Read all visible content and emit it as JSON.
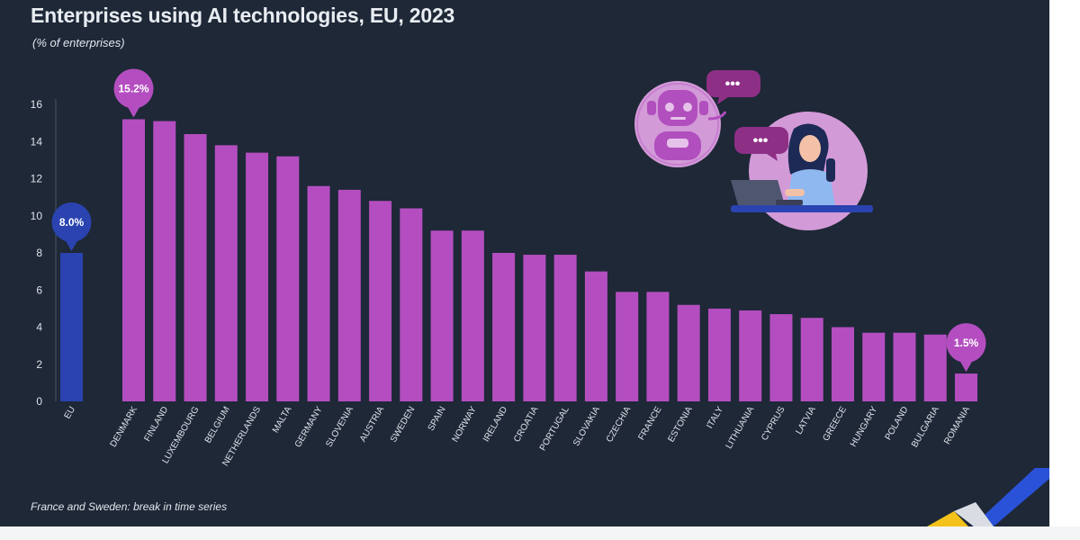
{
  "title": "Enterprises using AI technologies, EU, 2023",
  "subtitle": "(% of enterprises)",
  "note": "France and Sweden: break in time series",
  "colors": {
    "background": "#1e2837",
    "bar": "#b44ec0",
    "eu_bar": "#2a43b0",
    "callout_purple": "#b44ec0",
    "callout_blue": "#2a43b0",
    "axis_text": "#dfe3ea"
  },
  "chart_data": {
    "type": "bar",
    "title": "Enterprises using AI technologies, EU, 2023",
    "subtitle": "(% of enterprises)",
    "xlabel": "",
    "ylabel": "",
    "ylim": [
      0,
      16
    ],
    "yticks": [
      0,
      2,
      4,
      6,
      8,
      10,
      12,
      14,
      16
    ],
    "grid": false,
    "categories": [
      "EU",
      "DENMARK",
      "FINLAND",
      "LUXEMBOURG",
      "BELGIUM",
      "NETHERLANDS",
      "MALTA",
      "GERMANY",
      "SLOVENIA",
      "AUSTRIA",
      "SWEDEN",
      "SPAIN",
      "NORWAY",
      "IRELAND",
      "CROATIA",
      "PORTUGAL",
      "SLOVAKIA",
      "CZECHIA",
      "FRANCE",
      "ESTONIA",
      "ITALY",
      "LITHUANIA",
      "CYPRUS",
      "LATVIA",
      "GREECE",
      "HUNGARY",
      "POLAND",
      "BULGARIA",
      "ROMANIA"
    ],
    "values": [
      8.0,
      15.2,
      15.1,
      14.4,
      13.8,
      13.4,
      13.2,
      11.6,
      11.4,
      10.8,
      10.4,
      9.2,
      9.2,
      8.0,
      7.9,
      7.9,
      7.0,
      5.9,
      5.9,
      5.2,
      5.0,
      4.9,
      4.7,
      4.5,
      4.0,
      3.7,
      3.7,
      3.6,
      1.5
    ],
    "callouts": [
      {
        "category": "EU",
        "label": "8.0%",
        "color": "#2a43b0"
      },
      {
        "category": "DENMARK",
        "label": "15.2%",
        "color": "#b44ec0"
      },
      {
        "category": "ROMANIA",
        "label": "1.5%",
        "color": "#b44ec0"
      }
    ]
  },
  "illustration": {
    "icons": [
      "robot-icon",
      "person-with-laptop-icon",
      "chat-bubble-icon"
    ],
    "bubble_text": "•••"
  }
}
